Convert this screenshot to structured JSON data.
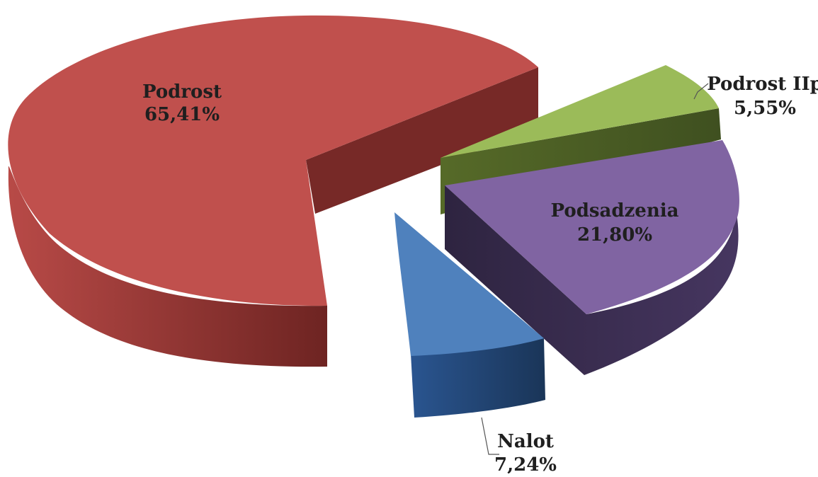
{
  "chart_data": {
    "type": "pie",
    "style": "3d-exploded",
    "slices": [
      {
        "name": "Podrost",
        "value": 65.41,
        "label": "Podrost",
        "value_label": "65,41%",
        "color": "#c0504d",
        "side_color": "#7a2a28"
      },
      {
        "name": "Podrost IIp",
        "value": 5.55,
        "label": "Podrost IIp",
        "value_label": "5,55%",
        "color": "#9bbb59",
        "side_color": "#4b5e23"
      },
      {
        "name": "Podsadzenia",
        "value": 21.8,
        "label": "Podsadzenia",
        "value_label": "21,80%",
        "color": "#8064a2",
        "side_color": "#3a2c4f"
      },
      {
        "name": "Nalot",
        "value": 7.24,
        "label": "Nalot",
        "value_label": "7,24%",
        "color": "#4f81bd",
        "side_color": "#1f3f66"
      }
    ]
  }
}
